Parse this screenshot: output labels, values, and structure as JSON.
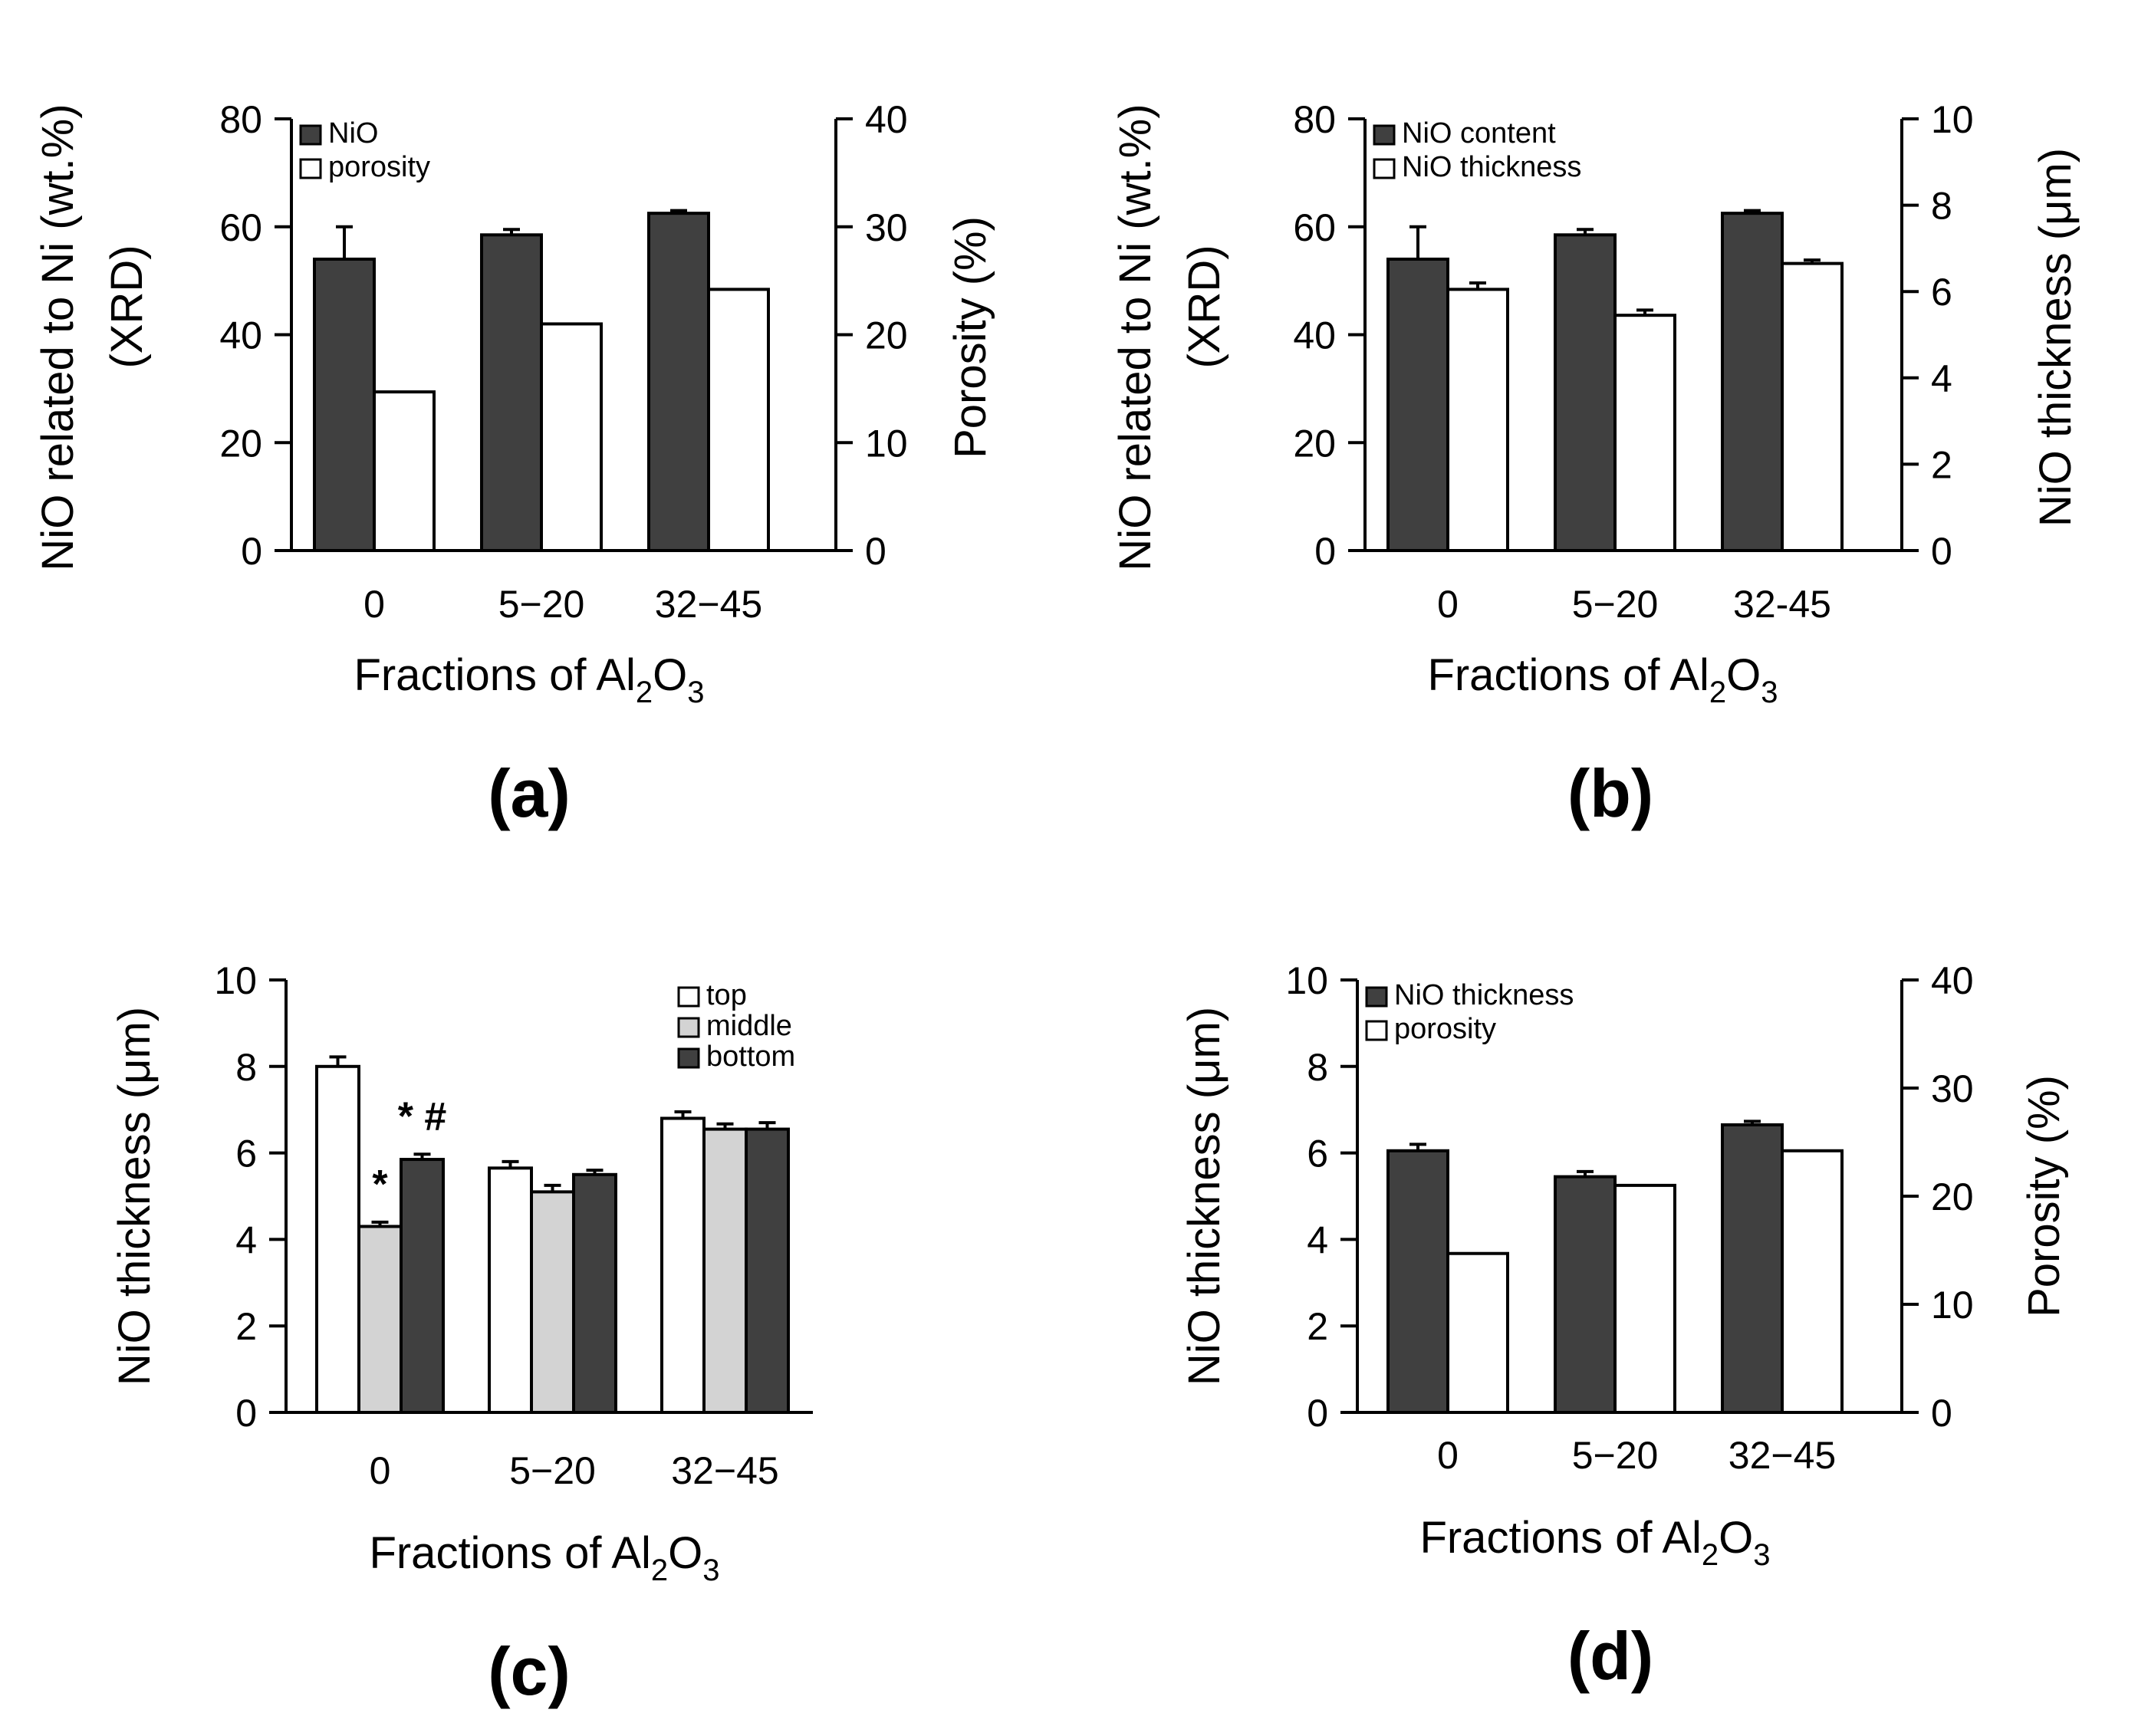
{
  "colors": {
    "dark": "#404040",
    "light": "#d3d3d3",
    "white": "#ffffff",
    "axis": "#000000"
  },
  "chart_data": [
    {
      "panel": "(a)",
      "type": "bar",
      "xlabel_main": "Fractions of Al",
      "xlabel_sub1": "2",
      "xlabel_mid": "O",
      "xlabel_sub2": "3",
      "ylabel_left_1": "NiO related to Ni (wt.%)",
      "ylabel_left_2": "(XRD)",
      "ylabel_right": "Porosity (%)",
      "categories": [
        "0",
        "5−20",
        "32−45"
      ],
      "left_axis": {
        "ylim": [
          0,
          80
        ],
        "ticks": [
          "0",
          "20",
          "40",
          "60",
          "80"
        ]
      },
      "right_axis": {
        "ylim": [
          0,
          40
        ],
        "ticks": [
          "0",
          "10",
          "20",
          "30",
          "40"
        ]
      },
      "series": [
        {
          "name": "NiO",
          "axis": "left",
          "color": "dark",
          "values": [
            54,
            58.5,
            62.5
          ],
          "errors": [
            6,
            1,
            0.5
          ]
        },
        {
          "name": "porosity",
          "axis": "right",
          "color": "white",
          "values": [
            14.7,
            21,
            24.2
          ],
          "errors": [
            0,
            0,
            0
          ]
        }
      ],
      "annotations": []
    },
    {
      "panel": "(b)",
      "type": "bar",
      "xlabel_main": "Fractions of Al",
      "xlabel_sub1": "2",
      "xlabel_mid": "O",
      "xlabel_sub2": "3",
      "ylabel_left_1": "NiO related to Ni (wt.%)",
      "ylabel_left_2": "(XRD)",
      "ylabel_right": "NiO thickness (μm)",
      "categories": [
        "0",
        "5−20",
        "32-45"
      ],
      "left_axis": {
        "ylim": [
          0,
          80
        ],
        "ticks": [
          "0",
          "20",
          "40",
          "60",
          "80"
        ]
      },
      "right_axis": {
        "ylim": [
          0,
          10
        ],
        "ticks": [
          "0",
          "2",
          "4",
          "6",
          "8",
          "10"
        ]
      },
      "series": [
        {
          "name": "NiO content",
          "axis": "left",
          "color": "dark",
          "values": [
            54,
            58.5,
            62.5
          ],
          "errors": [
            6,
            1,
            0.5
          ]
        },
        {
          "name": "NiO thickness",
          "axis": "right",
          "color": "white",
          "values": [
            6.05,
            5.45,
            6.65
          ],
          "errors": [
            0.15,
            0.12,
            0.08
          ]
        }
      ],
      "annotations": []
    },
    {
      "panel": "(c)",
      "type": "bar",
      "xlabel_main": "Fractions of Al",
      "xlabel_sub1": "2",
      "xlabel_mid": "O",
      "xlabel_sub2": "3",
      "ylabel_left_1": "NiO thickness (μm)",
      "ylabel_left_2": "",
      "ylabel_right": "",
      "categories": [
        "0",
        "5−20",
        "32−45"
      ],
      "left_axis": {
        "ylim": [
          0,
          10
        ],
        "ticks": [
          "0",
          "2",
          "4",
          "6",
          "8",
          "10"
        ]
      },
      "right_axis": null,
      "series": [
        {
          "name": "top",
          "axis": "left",
          "color": "white",
          "values": [
            8.0,
            5.65,
            6.8
          ],
          "errors": [
            0.22,
            0.15,
            0.15
          ]
        },
        {
          "name": "middle",
          "axis": "left",
          "color": "light",
          "values": [
            4.3,
            5.1,
            6.55
          ],
          "errors": [
            0.1,
            0.15,
            0.12
          ]
        },
        {
          "name": "bottom",
          "axis": "left",
          "color": "dark",
          "values": [
            5.85,
            5.5,
            6.55
          ],
          "errors": [
            0.12,
            0.1,
            0.15
          ]
        }
      ],
      "annotations": [
        {
          "text": "*",
          "category": 0,
          "series": 1
        },
        {
          "text": "* #",
          "category": 0,
          "series": 2
        }
      ]
    },
    {
      "panel": "(d)",
      "type": "bar",
      "xlabel_main": "Fractions of Al",
      "xlabel_sub1": "2",
      "xlabel_mid": "O",
      "xlabel_sub2": "3",
      "ylabel_left_1": "NiO thickness (μm)",
      "ylabel_left_2": "",
      "ylabel_right": "Porosity (%)",
      "categories": [
        "0",
        "5−20",
        "32−45"
      ],
      "left_axis": {
        "ylim": [
          0,
          10
        ],
        "ticks": [
          "0",
          "2",
          "4",
          "6",
          "8",
          "10"
        ]
      },
      "right_axis": {
        "ylim": [
          0,
          40
        ],
        "ticks": [
          "0",
          "10",
          "20",
          "30",
          "40"
        ]
      },
      "series": [
        {
          "name": "NiO thickness",
          "axis": "left",
          "color": "dark",
          "values": [
            6.05,
            5.45,
            6.65
          ],
          "errors": [
            0.15,
            0.12,
            0.08
          ]
        },
        {
          "name": "porosity",
          "axis": "right",
          "color": "white",
          "values": [
            14.7,
            21,
            24.2
          ],
          "errors": [
            0,
            0,
            0
          ]
        }
      ],
      "annotations": []
    }
  ]
}
